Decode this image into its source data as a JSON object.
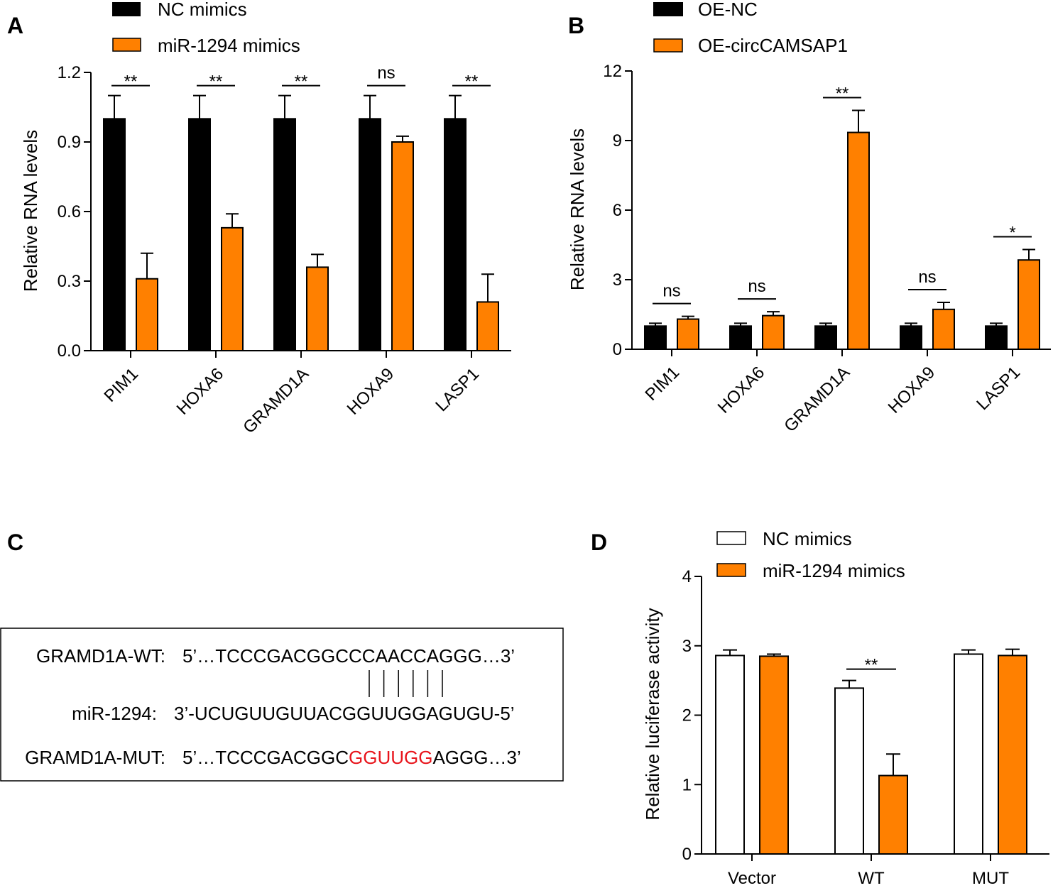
{
  "colors": {
    "black_bar": "#000000",
    "orange_bar": "#ff8000",
    "white_bar": "#ffffff",
    "mutation_red": "#e8141b"
  },
  "panel_a": {
    "letter": "A",
    "legend": [
      "NC mimics",
      "miR-1294 mimics"
    ],
    "significance": [
      "**",
      "**",
      "**",
      "ns",
      "**"
    ]
  },
  "panel_b": {
    "letter": "B",
    "legend": [
      "OE-NC",
      "OE-circCAMSAP1"
    ],
    "significance": [
      "ns",
      "ns",
      "**",
      "ns",
      "*"
    ]
  },
  "panel_c": {
    "letter": "C",
    "rows": [
      {
        "label": "GRAMD1A-WT:",
        "sequence": "5’…TCCCGACGGCCCAACCAGGG…3’"
      },
      {
        "label": "miR-1294:",
        "sequence": "3’-UCUGUUGUUACGGUUGGAGUGU-5’"
      },
      {
        "label": "GRAMD1A-MUT:",
        "seq_prefix": "5’…TCCCGACGGC",
        "seq_mutated": "GGUUGG",
        "seq_suffix": "AGGG…3’"
      }
    ],
    "pairing_lines": 6
  },
  "panel_d": {
    "letter": "D",
    "legend": [
      "NC mimics",
      "miR-1294 mimics"
    ],
    "significance": [
      "",
      "**",
      ""
    ]
  },
  "chart_data": [
    {
      "panel": "A",
      "type": "bar",
      "categories": [
        "PIM1",
        "HOXA6",
        "GRAMD1A",
        "HOXA9",
        "LASP1"
      ],
      "series": [
        {
          "name": "NC mimics",
          "values": [
            1.0,
            1.0,
            1.0,
            1.0,
            1.0
          ],
          "errors": [
            0.1,
            0.1,
            0.1,
            0.1,
            0.1
          ]
        },
        {
          "name": "miR-1294 mimics",
          "values": [
            0.31,
            0.53,
            0.36,
            0.9,
            0.21
          ],
          "errors": [
            0.11,
            0.06,
            0.055,
            0.025,
            0.12
          ]
        }
      ],
      "ylabel": "Relative RNA levels",
      "ylim": [
        0,
        1.2
      ],
      "yticks": [
        "0.0",
        "0.3",
        "0.6",
        "0.9",
        "1.2"
      ],
      "grid": false,
      "legend_position": "top-left"
    },
    {
      "panel": "B",
      "type": "bar",
      "categories": [
        "PIM1",
        "HOXA6",
        "GRAMD1A",
        "HOXA9",
        "LASP1"
      ],
      "series": [
        {
          "name": "OE-NC",
          "values": [
            1.0,
            1.0,
            1.0,
            1.0,
            1.0
          ],
          "errors": [
            0.12,
            0.12,
            0.12,
            0.12,
            0.12
          ]
        },
        {
          "name": "OE-circCAMSAP1",
          "values": [
            1.3,
            1.45,
            9.35,
            1.72,
            3.85
          ],
          "errors": [
            0.12,
            0.17,
            0.95,
            0.3,
            0.45
          ]
        }
      ],
      "ylabel": "Relative RNA levels",
      "ylim": [
        0,
        12
      ],
      "yticks": [
        "0",
        "3",
        "6",
        "9",
        "12"
      ],
      "grid": false,
      "legend_position": "top-left"
    },
    {
      "panel": "D",
      "type": "bar",
      "categories": [
        "Vector",
        "WT",
        "MUT"
      ],
      "series": [
        {
          "name": "NC mimics",
          "values": [
            2.86,
            2.39,
            2.88
          ],
          "errors": [
            0.08,
            0.11,
            0.06
          ]
        },
        {
          "name": "miR-1294 mimics",
          "values": [
            2.85,
            1.13,
            2.86
          ],
          "errors": [
            0.03,
            0.31,
            0.09
          ]
        }
      ],
      "ylabel": "Relative luciferase activity",
      "ylim": [
        0,
        4
      ],
      "yticks": [
        "0",
        "1",
        "2",
        "3",
        "4"
      ],
      "grid": false,
      "legend_position": "top-left"
    }
  ]
}
